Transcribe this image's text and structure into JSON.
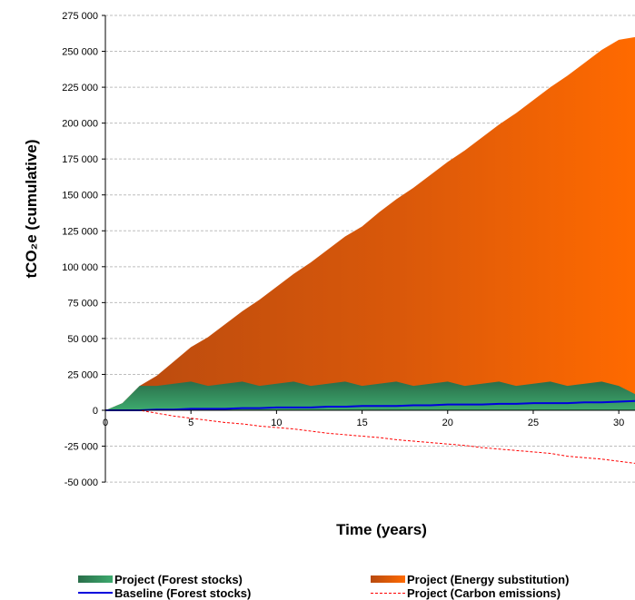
{
  "chart_data": {
    "type": "area",
    "title": "",
    "xlabel": "Time (years)",
    "ylabel": "tCO₂e (cumulative)",
    "xlim": [
      0,
      31
    ],
    "ylim": [
      -50000,
      275000
    ],
    "x_ticks": [
      "0",
      "5",
      "10",
      "15",
      "20",
      "25",
      "30"
    ],
    "y_ticks": [
      "275 000",
      "250 000",
      "225 000",
      "200 000",
      "175 000",
      "150 000",
      "125 000",
      "100 000",
      "75 000",
      "50 000",
      "25 000",
      "0",
      "-25 000",
      "-50 000"
    ],
    "y_tick_values": [
      275000,
      250000,
      225000,
      200000,
      175000,
      150000,
      125000,
      100000,
      75000,
      50000,
      25000,
      0,
      -25000,
      -50000
    ],
    "grid": "horizontal-dashed",
    "legend_position": "bottom",
    "x": [
      0,
      1,
      2,
      3,
      4,
      5,
      6,
      7,
      8,
      9,
      10,
      11,
      12,
      13,
      14,
      15,
      16,
      17,
      18,
      19,
      20,
      21,
      22,
      23,
      24,
      25,
      26,
      27,
      28,
      29,
      30,
      31
    ],
    "series": [
      {
        "name": "Project (Forest stocks)",
        "kind": "area",
        "color": "#2e8b57",
        "values": [
          0,
          5000,
          17000,
          17000,
          18500,
          20000,
          17000,
          18500,
          20000,
          17000,
          18500,
          20000,
          17000,
          18500,
          20000,
          17000,
          18500,
          20000,
          17000,
          18500,
          20000,
          17000,
          18500,
          20000,
          17000,
          18500,
          20000,
          17000,
          18500,
          20000,
          17000,
          11000
        ]
      },
      {
        "name": "Project (Energy substitution)",
        "kind": "area",
        "color": "#ff6600",
        "values": [
          0,
          5000,
          17000,
          24000,
          34000,
          44000,
          51000,
          60000,
          69000,
          77000,
          86000,
          95000,
          103000,
          112000,
          121000,
          128000,
          138000,
          147000,
          155000,
          164000,
          173000,
          181000,
          190000,
          199000,
          207000,
          216000,
          225000,
          233000,
          242000,
          251000,
          258000,
          260000
        ]
      },
      {
        "name": "Baseline (Forest stocks)",
        "kind": "line",
        "color": "#0000dd",
        "values": [
          0,
          0,
          0,
          500,
          500,
          1000,
          1000,
          1000,
          1500,
          1500,
          2000,
          2000,
          2000,
          2500,
          2500,
          3000,
          3000,
          3000,
          3500,
          3500,
          4000,
          4000,
          4000,
          4500,
          4500,
          5000,
          5000,
          5000,
          5500,
          5500,
          6000,
          6500
        ]
      },
      {
        "name": "Project (Carbon emissions)",
        "kind": "line-dashed",
        "color": "#ff0000",
        "values": [
          0,
          0,
          0,
          -2000,
          -4000,
          -5500,
          -7000,
          -8500,
          -9500,
          -11000,
          -12000,
          -13000,
          -14500,
          -16000,
          -17000,
          -18000,
          -19000,
          -20500,
          -21500,
          -22500,
          -23500,
          -24500,
          -26000,
          -27000,
          -28000,
          -29000,
          -30000,
          -32000,
          -33000,
          -34000,
          -35500,
          -37000
        ]
      }
    ]
  }
}
